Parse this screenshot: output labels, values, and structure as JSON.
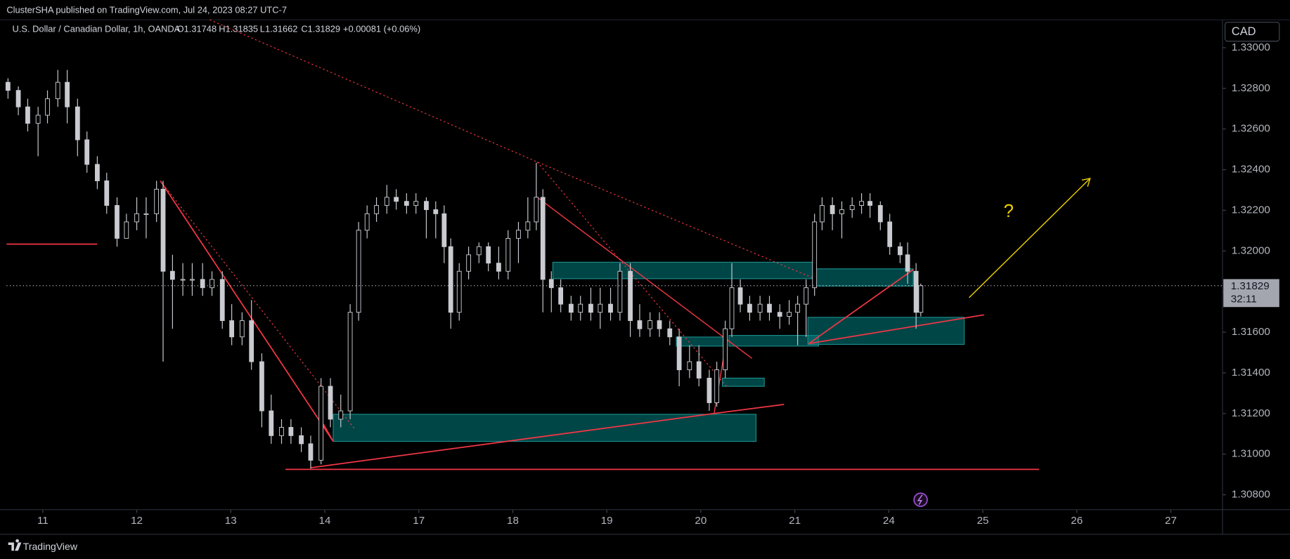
{
  "header": {
    "publisher": "ClusterSHA published on TradingView.com, Jul 24, 2023 08:27 UTC-7",
    "symbol": "U.S. Dollar / Canadian Dollar, 1h, OANDA",
    "open": "O1.31748",
    "high": "H1.31835",
    "low": "L1.31662",
    "close": "C1.31829",
    "change": "+0.00081 (+0.06%)"
  },
  "footer": {
    "brand": "TradingView"
  },
  "chart_data": {
    "type": "candlestick",
    "currency": "CAD",
    "color": "#c9cbd1",
    "x": [
      -0.37,
      -0.26,
      -0.16,
      -0.05,
      0.05,
      0.16,
      0.26,
      0.37,
      0.47,
      0.58,
      0.68,
      0.79,
      0.89,
      1.0,
      1.1,
      1.21,
      1.28,
      1.38,
      1.49,
      1.59,
      1.7,
      1.8,
      1.91,
      2.01,
      2.12,
      2.22,
      2.33,
      2.43,
      2.54,
      2.64,
      2.75,
      2.85,
      2.96,
      3.06,
      3.17,
      3.27,
      3.36,
      3.45,
      3.55,
      3.66,
      3.76,
      3.87,
      3.97,
      4.08,
      4.18,
      4.27,
      4.34,
      4.43,
      4.53,
      4.64,
      4.74,
      4.85,
      4.95,
      5.06,
      5.16,
      5.25,
      5.32,
      5.41,
      5.51,
      5.62,
      5.72,
      5.83,
      5.93,
      6.04,
      6.14,
      6.25,
      6.35,
      6.46,
      6.56,
      6.67,
      6.77,
      6.88,
      6.98,
      7.09,
      7.17,
      7.26,
      7.33,
      7.42,
      7.52,
      7.63,
      7.73,
      7.84,
      7.94,
      8.03,
      8.12,
      8.21,
      8.29,
      8.4,
      8.5,
      8.61,
      8.71,
      8.8,
      8.91,
      9.01,
      9.12,
      9.2,
      9.29,
      9.34
    ],
    "open": [
      1.3283,
      1.3279,
      1.32709,
      1.32628,
      1.32668,
      1.32749,
      1.3283,
      1.32709,
      1.32547,
      1.32426,
      1.32345,
      1.32224,
      1.32062,
      1.32143,
      1.32183,
      1.32183,
      1.32304,
      1.319,
      1.3186,
      1.3186,
      1.3186,
      1.31819,
      1.3186,
      1.31657,
      1.31577,
      1.31657,
      1.31455,
      1.31213,
      1.31091,
      1.31132,
      1.31091,
      1.31051,
      1.3097,
      1.31334,
      1.31172,
      1.31213,
      1.31698,
      1.32102,
      1.32183,
      1.32224,
      1.32264,
      1.32244,
      1.32224,
      1.32244,
      1.32203,
      1.32183,
      1.32021,
      1.31698,
      1.319,
      1.31981,
      1.32021,
      1.3194,
      1.319,
      1.32062,
      1.32102,
      1.32143,
      1.32264,
      1.3186,
      1.31819,
      1.31738,
      1.31698,
      1.31738,
      1.31698,
      1.31738,
      1.31698,
      1.319,
      1.31657,
      1.31617,
      1.31657,
      1.31617,
      1.31577,
      1.31415,
      1.31455,
      1.31374,
      1.31253,
      1.31415,
      1.31617,
      1.31819,
      1.31738,
      1.31698,
      1.31738,
      1.31698,
      1.31678,
      1.31698,
      1.31738,
      1.31819,
      1.32143,
      1.32224,
      1.32183,
      1.32203,
      1.32224,
      1.32244,
      1.32224,
      1.32143,
      1.32021,
      1.31981,
      1.319,
      1.31698
    ],
    "high": [
      1.3285,
      1.3281,
      1.32749,
      1.32709,
      1.3279,
      1.32891,
      1.32891,
      1.32749,
      1.32588,
      1.32466,
      1.32385,
      1.32264,
      1.32183,
      1.32264,
      1.32264,
      1.32345,
      1.32345,
      1.31981,
      1.3194,
      1.3194,
      1.3194,
      1.319,
      1.319,
      1.31738,
      1.31698,
      1.31758,
      1.31496,
      1.31293,
      1.31172,
      1.31172,
      1.31132,
      1.31091,
      1.31374,
      1.31374,
      1.31293,
      1.31738,
      1.32143,
      1.32224,
      1.32264,
      1.32325,
      1.32304,
      1.32284,
      1.32284,
      1.32264,
      1.32244,
      1.32224,
      1.32062,
      1.3194,
      1.32021,
      1.32042,
      1.32042,
      1.32021,
      1.32102,
      1.32143,
      1.32264,
      1.32434,
      1.32304,
      1.319,
      1.3186,
      1.31779,
      1.31779,
      1.31819,
      1.31819,
      1.31819,
      1.3194,
      1.3194,
      1.31738,
      1.31698,
      1.31698,
      1.31657,
      1.31617,
      1.31536,
      1.31536,
      1.31415,
      1.31455,
      1.31657,
      1.3194,
      1.3186,
      1.31779,
      1.31779,
      1.31779,
      1.31738,
      1.31758,
      1.31779,
      1.3186,
      1.32183,
      1.32264,
      1.32264,
      1.32244,
      1.32264,
      1.32284,
      1.32284,
      1.32244,
      1.32183,
      1.32042,
      1.32042,
      1.3194,
      1.31839
    ],
    "low": [
      1.32749,
      1.32668,
      1.32588,
      1.32466,
      1.32628,
      1.32709,
      1.32628,
      1.32466,
      1.32385,
      1.32304,
      1.32183,
      1.32021,
      1.32062,
      1.32102,
      1.32062,
      1.32143,
      1.31455,
      1.31617,
      1.31779,
      1.31779,
      1.31779,
      1.31779,
      1.31617,
      1.31536,
      1.31536,
      1.31415,
      1.31132,
      1.31051,
      1.31051,
      1.31051,
      1.3101,
      1.30929,
      1.3095,
      1.31132,
      1.31132,
      1.31172,
      1.31657,
      1.32062,
      1.32143,
      1.32183,
      1.32203,
      1.32183,
      1.32183,
      1.32062,
      1.32062,
      1.3194,
      1.31617,
      1.31657,
      1.3186,
      1.3194,
      1.319,
      1.3186,
      1.3186,
      1.3194,
      1.32062,
      1.32102,
      1.31698,
      1.31698,
      1.31698,
      1.31657,
      1.31657,
      1.31657,
      1.31617,
      1.31657,
      1.31657,
      1.31577,
      1.31577,
      1.31577,
      1.31577,
      1.31536,
      1.31334,
      1.31374,
      1.31334,
      1.31213,
      1.31233,
      1.31374,
      1.31577,
      1.31698,
      1.31657,
      1.31657,
      1.31657,
      1.31617,
      1.31637,
      1.31536,
      1.31577,
      1.31779,
      1.32102,
      1.32102,
      1.32062,
      1.32163,
      1.32183,
      1.32163,
      1.32102,
      1.31981,
      1.3194,
      1.31839,
      1.31617,
      1.31678
    ],
    "close": [
      1.3279,
      1.32709,
      1.32628,
      1.32668,
      1.32749,
      1.3283,
      1.32709,
      1.32547,
      1.32426,
      1.32345,
      1.32224,
      1.32062,
      1.32143,
      1.32183,
      1.32183,
      1.32304,
      1.319,
      1.3186,
      1.3186,
      1.3186,
      1.31819,
      1.3186,
      1.31657,
      1.31577,
      1.31657,
      1.31455,
      1.31213,
      1.31091,
      1.31132,
      1.31091,
      1.31051,
      1.3097,
      1.31334,
      1.31172,
      1.31213,
      1.31698,
      1.32102,
      1.32183,
      1.32224,
      1.32264,
      1.32244,
      1.32224,
      1.32244,
      1.32203,
      1.32183,
      1.32021,
      1.31698,
      1.319,
      1.31981,
      1.32021,
      1.3194,
      1.319,
      1.32062,
      1.32102,
      1.32143,
      1.32264,
      1.3186,
      1.31819,
      1.31738,
      1.31698,
      1.31738,
      1.31698,
      1.31738,
      1.31698,
      1.319,
      1.31657,
      1.31617,
      1.31657,
      1.31617,
      1.31577,
      1.31415,
      1.31455,
      1.31374,
      1.31253,
      1.31415,
      1.31617,
      1.31819,
      1.31738,
      1.31698,
      1.31738,
      1.31698,
      1.31678,
      1.31698,
      1.31738,
      1.31819,
      1.32143,
      1.32224,
      1.32183,
      1.32203,
      1.32224,
      1.32244,
      1.32224,
      1.32143,
      1.32021,
      1.31981,
      1.319,
      1.31698,
      1.31829
    ],
    "xlim": [
      -0.385,
      12.55
    ],
    "xticks": [
      {
        "value": 0,
        "label": "11"
      },
      {
        "value": 1,
        "label": "12"
      },
      {
        "value": 2,
        "label": "13"
      },
      {
        "value": 3,
        "label": "14"
      },
      {
        "value": 4,
        "label": "17"
      },
      {
        "value": 5,
        "label": "18"
      },
      {
        "value": 6,
        "label": "19"
      },
      {
        "value": 7,
        "label": "20"
      },
      {
        "value": 8,
        "label": "21"
      },
      {
        "value": 9,
        "label": "24"
      },
      {
        "value": 10,
        "label": "25"
      },
      {
        "value": 11,
        "label": "26"
      },
      {
        "value": 12,
        "label": "27"
      }
    ],
    "ylim": [
      1.30727,
      1.331375
    ],
    "yticks": [
      {
        "value": 1.308,
        "label": "1.30800"
      },
      {
        "value": 1.31,
        "label": "1.31000"
      },
      {
        "value": 1.312,
        "label": "1.31200"
      },
      {
        "value": 1.314,
        "label": "1.31400"
      },
      {
        "value": 1.316,
        "label": "1.31600"
      },
      {
        "value": 1.318,
        "label": "1.31800"
      },
      {
        "value": 1.32,
        "label": "1.32000"
      },
      {
        "value": 1.322,
        "label": "1.32200"
      },
      {
        "value": 1.324,
        "label": "1.32400"
      },
      {
        "value": 1.326,
        "label": "1.32600"
      },
      {
        "value": 1.328,
        "label": "1.32800"
      },
      {
        "value": 1.33,
        "label": "1.33000"
      }
    ],
    "last_price": 1.31829,
    "countdown": "32:11",
    "annotation": "?"
  }
}
